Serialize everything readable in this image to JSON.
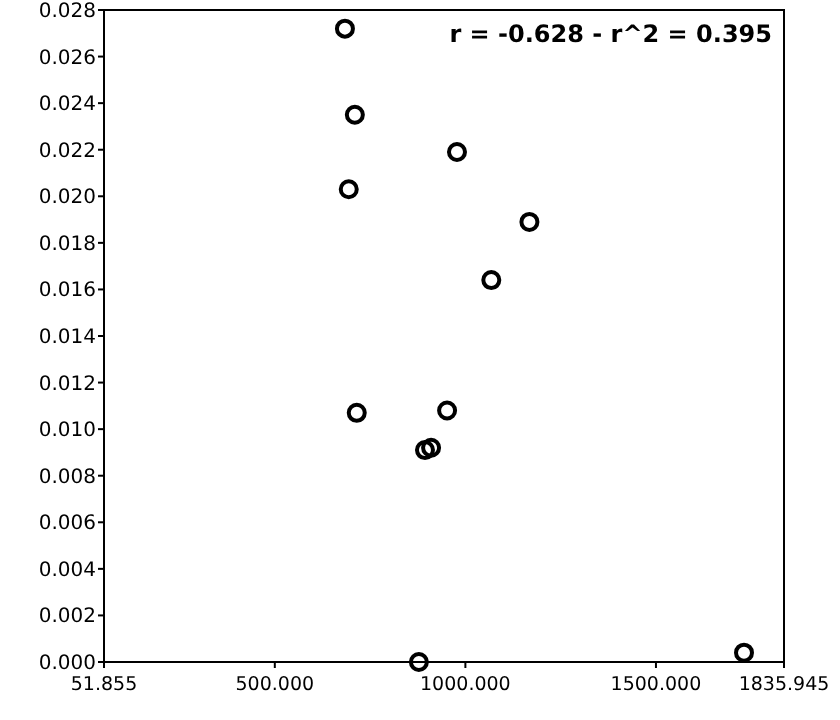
{
  "chart_data": {
    "type": "scatter",
    "annotations": [
      "r = -0.628 - r^2 = 0.395"
    ],
    "x": [
      684,
      710,
      694,
      978,
      1168,
      1068,
      715,
      952,
      894,
      910,
      878,
      1731
    ],
    "values": [
      0.0272,
      0.0235,
      0.0203,
      0.0219,
      0.0189,
      0.0164,
      0.0107,
      0.0108,
      0.0091,
      0.0092,
      0.0,
      0.0004
    ],
    "color": "#000000",
    "marker": "circle",
    "grid": false,
    "xlim": [
      51.855,
      1835.945
    ],
    "xticks": [
      {
        "value": 51.855,
        "label": "51.855"
      },
      {
        "value": 500,
        "label": "500.000"
      },
      {
        "value": 1000,
        "label": "1000.000"
      },
      {
        "value": 1500,
        "label": "1500.000"
      },
      {
        "value": 1835.945,
        "label": "1835.945"
      }
    ],
    "ylim": [
      0,
      0.028
    ],
    "yticks": [
      {
        "value": 0,
        "label": "0.000"
      },
      {
        "value": 0.002,
        "label": "0.002"
      },
      {
        "value": 0.004,
        "label": "0.004"
      },
      {
        "value": 0.006,
        "label": "0.006"
      },
      {
        "value": 0.008,
        "label": "0.008"
      },
      {
        "value": 0.01,
        "label": "0.010"
      },
      {
        "value": 0.012,
        "label": "0.012"
      },
      {
        "value": 0.014,
        "label": "0.014"
      },
      {
        "value": 0.016,
        "label": "0.016"
      },
      {
        "value": 0.018,
        "label": "0.018"
      },
      {
        "value": 0.02,
        "label": "0.020"
      },
      {
        "value": 0.022,
        "label": "0.022"
      },
      {
        "value": 0.024,
        "label": "0.024"
      },
      {
        "value": 0.026,
        "label": "0.026"
      },
      {
        "value": 0.028,
        "label": "0.028"
      }
    ]
  }
}
